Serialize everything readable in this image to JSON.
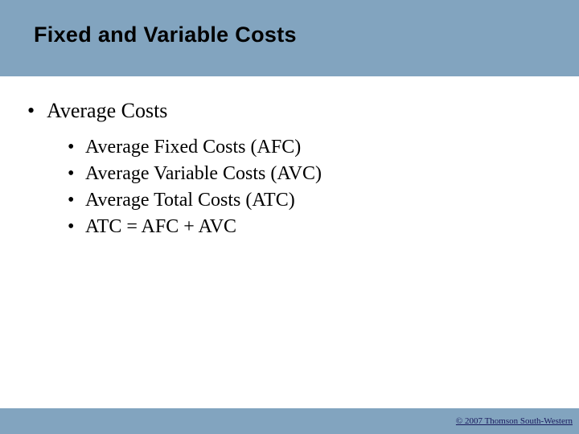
{
  "slide": {
    "title": "Fixed and Variable Costs",
    "background_color": "#82a4bf",
    "title_color": "#000000",
    "title_fontsize": 27,
    "content_background": "#ffffff"
  },
  "content": {
    "level1": {
      "bullet": "•",
      "text": "Average Costs",
      "fontsize": 26,
      "color": "#000000"
    },
    "level2": {
      "bullet": "•",
      "fontsize": 24,
      "color": "#000000",
      "items": [
        "Average Fixed Costs (AFC)",
        "Average Variable Costs (AVC)",
        "Average Total Costs (ATC)",
        "ATC = AFC + AVC"
      ]
    }
  },
  "footer": {
    "copyright": "© 2007 Thomson South-Western",
    "color": "#1a1a5e",
    "fontsize": 11
  }
}
